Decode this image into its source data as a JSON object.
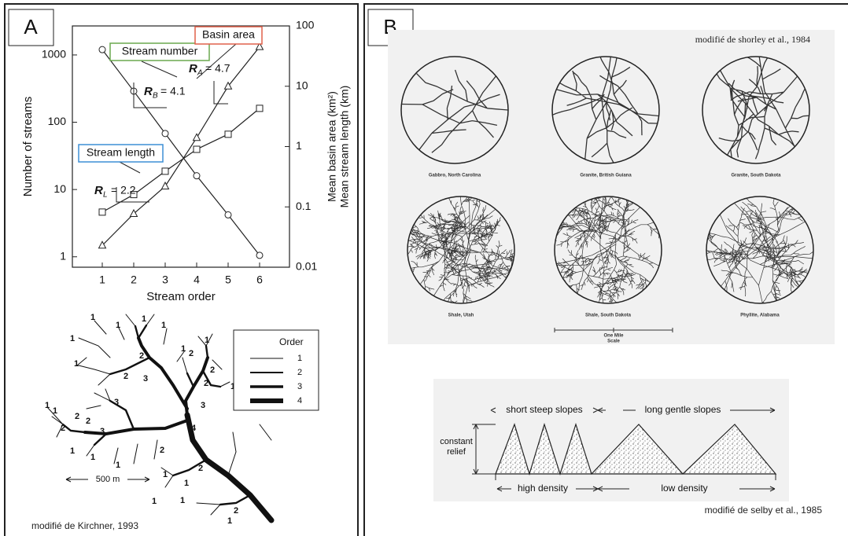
{
  "chart_data": {
    "type": "line",
    "xlabel": "Stream order",
    "ylabel": "Number of streams",
    "y2label": [
      "Mean basin area (km²)",
      "Mean stream length (km)"
    ],
    "x": [
      1,
      2,
      3,
      4,
      5,
      6
    ],
    "xlim": [
      0.05,
      6.95
    ],
    "xticks": [
      1,
      2,
      3,
      4,
      5,
      6
    ],
    "ylim": [
      0.7,
      2700
    ],
    "yticks": [
      1,
      10,
      100,
      1000
    ],
    "y_log": true,
    "y2lim": [
      0.01,
      100
    ],
    "y2ticks": [
      0.01,
      0.1,
      1,
      10,
      100
    ],
    "y2_log": true,
    "series": [
      {
        "name": "Stream number",
        "color": "#222222",
        "box_color": "#6aa84f",
        "marker": "circle",
        "values": [
          1200,
          290,
          68,
          16,
          4.2,
          1.05
        ]
      },
      {
        "name": "Stream length",
        "color": "#222222",
        "box_color": "#3d8fd6",
        "marker": "square",
        "axis": "y2",
        "values": [
          0.082,
          0.16,
          0.39,
          0.9,
          1.6,
          4.3
        ]
      },
      {
        "name": "Basin area",
        "color": "#222222",
        "box_color": "#e0604a",
        "marker": "triangle",
        "axis": "y2",
        "values": [
          0.023,
          0.077,
          0.22,
          1.4,
          10,
          45
        ]
      }
    ],
    "annotations": [
      {
        "symbol": "R",
        "subscript": "B",
        "text": "= 4.1"
      },
      {
        "symbol": "R",
        "subscript": "A",
        "text": "= 4.7"
      },
      {
        "symbol": "R",
        "subscript": "L",
        "text": "= 2.2"
      }
    ]
  },
  "panel_a": {
    "label": "A",
    "tree_labels": [
      "1",
      "1",
      "1",
      "1",
      "1",
      "2",
      "2",
      "3",
      "2",
      "1",
      "1",
      "2",
      "1",
      "2",
      "3",
      "3",
      "1",
      "1",
      "2",
      "2",
      "2",
      "3",
      "4",
      "1",
      "1",
      "2",
      "1",
      "1",
      "1",
      "1",
      "2",
      "1",
      "1",
      "2",
      "1"
    ],
    "legend_title": "Order",
    "legend_items": [
      "1",
      "2",
      "3",
      "4"
    ],
    "scale": "500 m",
    "caption": "modifié de Kirchner, 1993"
  },
  "panel_b": {
    "label": "B",
    "caption_top": "modifié de  shorley et al., 1984",
    "rocks": [
      "Gabbro, North Carolina",
      "Granite, British Guiana",
      "Granite, South Dakota",
      "Shale, Utah",
      "Shale, South Dakota",
      "Phyllite, Alabama"
    ],
    "scale_top": "One Mile",
    "scale_bottom": "Scale",
    "slopes": {
      "short": "short steep slopes",
      "long": "long gentle slopes",
      "relief": [
        "constant",
        "relief"
      ],
      "high": "high density",
      "low": "low   density"
    },
    "caption_bottom": "modifié de  selby et al.,  1985"
  }
}
